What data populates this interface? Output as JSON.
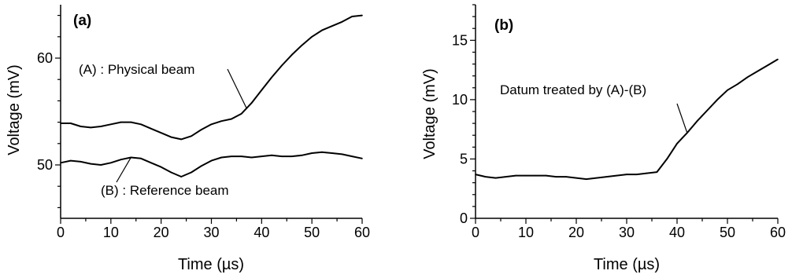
{
  "chart_data": [
    {
      "type": "line",
      "panel_label": "(a)",
      "xlabel": "Time (µs)",
      "ylabel": "Voltage (mV)",
      "xlim": [
        0,
        60
      ],
      "ylim": [
        45,
        65
      ],
      "xticks": [
        0,
        10,
        20,
        30,
        40,
        50,
        60
      ],
      "yticks": [
        50,
        60
      ],
      "grid": false,
      "series": [
        {
          "name": "(A) : Physical beam",
          "x": [
            0,
            2,
            4,
            6,
            8,
            10,
            12,
            14,
            16,
            18,
            20,
            22,
            24,
            26,
            28,
            30,
            32,
            34,
            36,
            38,
            40,
            42,
            44,
            46,
            48,
            50,
            52,
            54,
            56,
            58,
            60
          ],
          "y": [
            53.9,
            53.9,
            53.6,
            53.5,
            53.6,
            53.8,
            54.0,
            54.0,
            53.8,
            53.4,
            53.0,
            52.6,
            52.4,
            52.7,
            53.3,
            53.8,
            54.1,
            54.3,
            54.8,
            55.8,
            57.0,
            58.2,
            59.3,
            60.3,
            61.2,
            62.0,
            62.6,
            63.0,
            63.4,
            63.9,
            64.0
          ]
        },
        {
          "name": "(B) : Reference beam",
          "x": [
            0,
            2,
            4,
            6,
            8,
            10,
            12,
            14,
            16,
            18,
            20,
            22,
            24,
            26,
            28,
            30,
            32,
            34,
            36,
            38,
            40,
            42,
            44,
            46,
            48,
            50,
            52,
            54,
            56,
            58,
            60
          ],
          "y": [
            50.2,
            50.4,
            50.3,
            50.1,
            50.0,
            50.2,
            50.5,
            50.7,
            50.6,
            50.2,
            49.8,
            49.3,
            48.9,
            49.3,
            49.9,
            50.4,
            50.7,
            50.8,
            50.8,
            50.7,
            50.8,
            50.9,
            50.8,
            50.8,
            50.9,
            51.1,
            51.2,
            51.1,
            51.0,
            50.8,
            50.6
          ]
        }
      ],
      "annotations": [
        {
          "text": "(A) : Physical beam",
          "target_series": 0,
          "target_x": 37
        },
        {
          "text": "(B) : Reference beam",
          "target_series": 1,
          "target_x": 14
        }
      ]
    },
    {
      "type": "line",
      "panel_label": "(b)",
      "xlabel": "Time (µs)",
      "ylabel": "Voltage (mV)",
      "xlim": [
        0,
        60
      ],
      "ylim": [
        0,
        18
      ],
      "xticks": [
        0,
        10,
        20,
        30,
        40,
        50,
        60
      ],
      "yticks": [
        0,
        5,
        10,
        15
      ],
      "grid": false,
      "series": [
        {
          "x": [
            0,
            2,
            4,
            6,
            8,
            10,
            12,
            14,
            16,
            18,
            20,
            22,
            24,
            26,
            28,
            30,
            32,
            34,
            36,
            38,
            40,
            42,
            44,
            46,
            48,
            50,
            52,
            54,
            56,
            58,
            60
          ],
          "y": [
            3.7,
            3.5,
            3.4,
            3.5,
            3.6,
            3.6,
            3.6,
            3.6,
            3.5,
            3.5,
            3.4,
            3.3,
            3.4,
            3.5,
            3.6,
            3.7,
            3.7,
            3.8,
            3.9,
            5.0,
            6.3,
            7.2,
            8.2,
            9.1,
            10.0,
            10.8,
            11.3,
            11.9,
            12.4,
            12.9,
            13.4
          ]
        }
      ],
      "annotations": [
        {
          "text": "Datum treated by (A)-(B)",
          "target_series": 0,
          "target_x": 42
        }
      ]
    }
  ]
}
